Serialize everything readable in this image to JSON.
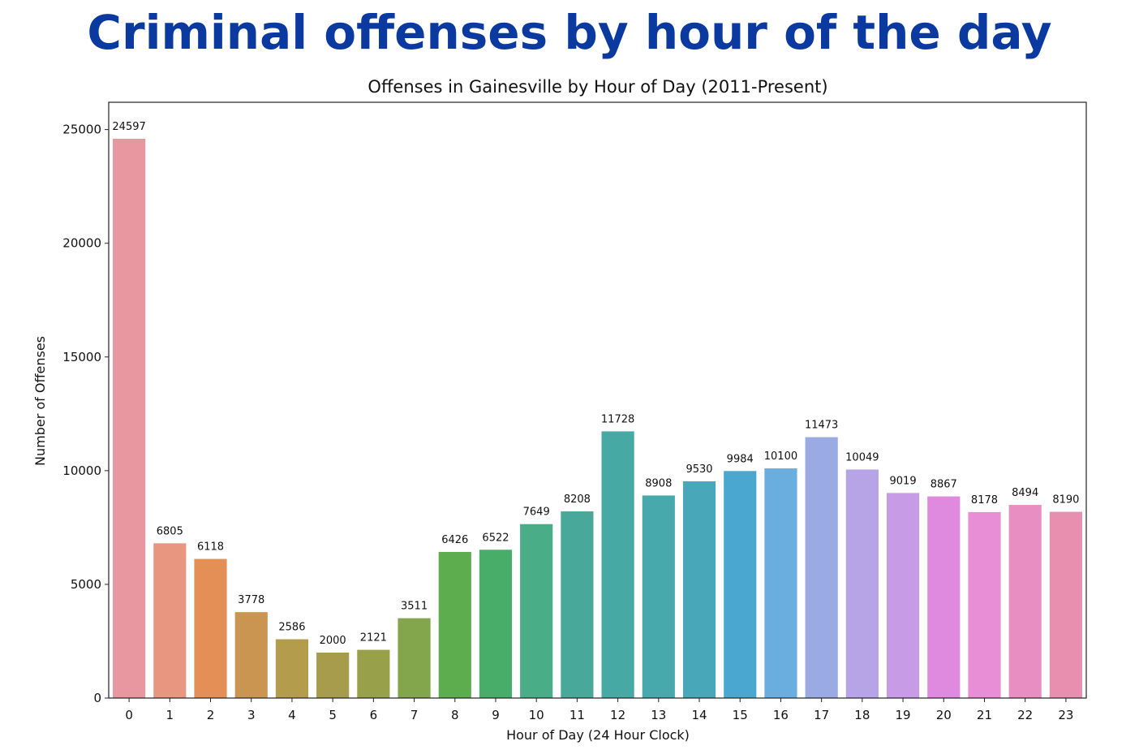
{
  "headline": "Criminal offenses by hour of the day",
  "chart_data": {
    "type": "bar",
    "title": "Offenses in Gainesville by Hour of Day (2011-Present)",
    "xlabel": "Hour of Day (24 Hour Clock)",
    "ylabel": "Number of Offenses",
    "ylim": [
      0,
      26200
    ],
    "yticks": [
      0,
      5000,
      10000,
      15000,
      20000,
      25000
    ],
    "categories": [
      "0",
      "1",
      "2",
      "3",
      "4",
      "5",
      "6",
      "7",
      "8",
      "9",
      "10",
      "11",
      "12",
      "13",
      "14",
      "15",
      "16",
      "17",
      "18",
      "19",
      "20",
      "21",
      "22",
      "23"
    ],
    "values": [
      24597,
      6805,
      6118,
      3778,
      2586,
      2000,
      2121,
      3511,
      6426,
      6522,
      7649,
      8208,
      11728,
      8908,
      9530,
      9984,
      10100,
      11473,
      10049,
      9019,
      8867,
      8178,
      8494,
      8190
    ],
    "colors": [
      "#e8969f",
      "#e8967f",
      "#e48f55",
      "#c99550",
      "#b49c4d",
      "#a79c4b",
      "#99a04a",
      "#83a54c",
      "#5dad4f",
      "#49ad6a",
      "#49ad88",
      "#48a99a",
      "#47a9a4",
      "#48a9ad",
      "#48a7b9",
      "#4aa8d0",
      "#6aaee0",
      "#9aabe4",
      "#b6a4e6",
      "#c89be6",
      "#e08adf",
      "#e88ed6",
      "#e88ec3",
      "#e88fb0"
    ],
    "grid": false
  }
}
